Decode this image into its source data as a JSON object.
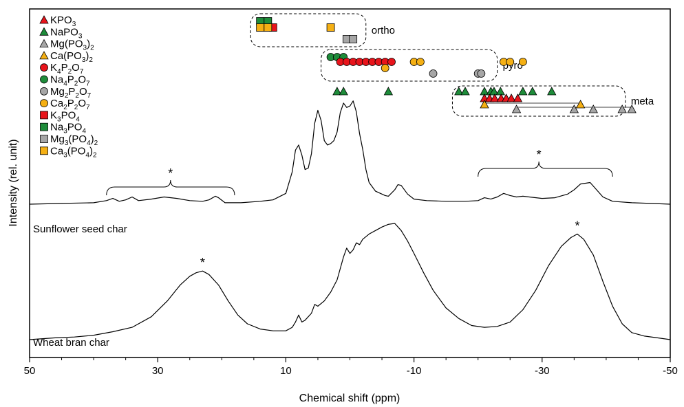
{
  "chart_data": {
    "type": "line",
    "xlabel": "Chemical shift (ppm)",
    "ylabel": "Intensity (rel. unit)",
    "xlim": [
      50,
      -50
    ],
    "xticks": [
      50,
      30,
      10,
      -10,
      -30,
      -50
    ],
    "colors": {
      "red": "#e8141b",
      "green": "#1e8c3a",
      "grey": "#a6a6a6",
      "orange": "#f5b014"
    },
    "legend": [
      {
        "marker": "triangle",
        "color": "red",
        "label": "KPO",
        "sub": [
          "3",
          ""
        ]
      },
      {
        "marker": "triangle",
        "color": "green",
        "label": "NaPO",
        "sub": [
          "3",
          ""
        ]
      },
      {
        "marker": "triangle",
        "color": "grey",
        "label": "Mg(PO",
        "sub": [
          "3",
          ")",
          "2"
        ]
      },
      {
        "marker": "triangle",
        "color": "orange",
        "label": "Ca(PO",
        "sub": [
          "3",
          ")",
          "2"
        ]
      },
      {
        "marker": "circle",
        "color": "red",
        "label": "K",
        "sub": [
          "4",
          "P",
          "2",
          "O",
          "7"
        ]
      },
      {
        "marker": "circle",
        "color": "green",
        "label": "Na",
        "sub": [
          "4",
          "P",
          "2",
          "O",
          "7"
        ]
      },
      {
        "marker": "circle",
        "color": "grey",
        "label": "Mg",
        "sub": [
          "2",
          "P",
          "2",
          "O",
          "7"
        ]
      },
      {
        "marker": "circle",
        "color": "orange",
        "label": "Ca",
        "sub": [
          "2",
          "P",
          "2",
          "O",
          "7"
        ]
      },
      {
        "marker": "square",
        "color": "red",
        "label": "K",
        "sub": [
          "3",
          "PO",
          "4"
        ]
      },
      {
        "marker": "square",
        "color": "green",
        "label": "Na",
        "sub": [
          "3",
          "PO",
          "4"
        ]
      },
      {
        "marker": "square",
        "color": "grey",
        "label": "Mg",
        "sub": [
          "3",
          "(PO",
          "4",
          ")",
          "2"
        ]
      },
      {
        "marker": "square",
        "color": "orange",
        "label": "Ca",
        "sub": [
          "3",
          "(PO",
          "4",
          ")",
          "2"
        ]
      }
    ],
    "groups": [
      {
        "label": "ortho",
        "x_range": [
          15.5,
          -2.5
        ]
      },
      {
        "label": "pyro",
        "x_range": [
          4.5,
          -23
        ]
      },
      {
        "label": "meta",
        "x_range": [
          -16,
          -43
        ]
      }
    ],
    "reference_markers": {
      "ortho": [
        {
          "marker": "square",
          "color": "green",
          "row": 0,
          "x": [
            14.0,
            12.8
          ]
        },
        {
          "marker": "square",
          "color": "red",
          "row": 1,
          "x": [
            12.0
          ]
        },
        {
          "marker": "square",
          "color": "orange",
          "row": 1,
          "x": [
            14.0,
            12.8,
            3.0
          ]
        },
        {
          "marker": "square",
          "color": "grey",
          "row": 2,
          "x": [
            0.5,
            -0.5
          ]
        }
      ],
      "pyro": [
        {
          "marker": "circle",
          "color": "green",
          "row": 0,
          "x": [
            3.0,
            2.0,
            1.0
          ]
        },
        {
          "marker": "circle",
          "color": "red",
          "row": 1,
          "x": [
            1.5,
            0.5,
            -0.5,
            -1.5,
            -2.5,
            -3.5,
            -4.5,
            -5.5,
            -6.5
          ]
        },
        {
          "marker": "circle",
          "color": "orange",
          "row": 1,
          "x": [
            -10.0,
            -11.0,
            -24.0,
            -25.0,
            -27.0
          ]
        },
        {
          "marker": "circle",
          "color": "orange",
          "row": 2,
          "x": [
            -5.5
          ]
        },
        {
          "marker": "circle",
          "color": "grey",
          "row": 3,
          "x": [
            -13.0,
            -20.0,
            -20.5
          ]
        }
      ],
      "meta": [
        {
          "marker": "triangle",
          "color": "green",
          "row": 0,
          "x": [
            2.0,
            1.0,
            -6.0,
            -17.0,
            -18.0,
            -21.0,
            -22.0,
            -22.5,
            -23.5,
            -27.0,
            -28.5,
            -31.5
          ]
        },
        {
          "marker": "triangle",
          "color": "red",
          "row": 1,
          "x": [
            -21.0,
            -21.8,
            -22.6,
            -23.6,
            -24.4,
            -25.2,
            -26.2
          ]
        },
        {
          "marker": "triangle",
          "color": "orange",
          "row": 2,
          "x": [
            -21.0,
            -36.0
          ]
        },
        {
          "marker": "triangle",
          "color": "grey",
          "row": 3,
          "x": [
            -26.0,
            -35.0,
            -38.0,
            -42.5,
            -44.0
          ]
        }
      ]
    },
    "series": [
      {
        "name": "Sunflower seed char",
        "points": [
          [
            50,
            0.0
          ],
          [
            45,
            0.01
          ],
          [
            40,
            0.02
          ],
          [
            38,
            0.05
          ],
          [
            37,
            0.08
          ],
          [
            36,
            0.04
          ],
          [
            35,
            0.06
          ],
          [
            34,
            0.1
          ],
          [
            33,
            0.05
          ],
          [
            31,
            0.07
          ],
          [
            29,
            0.1
          ],
          [
            27,
            0.08
          ],
          [
            25,
            0.05
          ],
          [
            23,
            0.04
          ],
          [
            22,
            0.06
          ],
          [
            21,
            0.11
          ],
          [
            20.5,
            0.09
          ],
          [
            19.5,
            0.02
          ],
          [
            17,
            0.02
          ],
          [
            14,
            0.04
          ],
          [
            12,
            0.06
          ],
          [
            10,
            0.15
          ],
          [
            9,
            0.45
          ],
          [
            8.5,
            0.75
          ],
          [
            8.0,
            0.82
          ],
          [
            7.5,
            0.68
          ],
          [
            7.0,
            0.48
          ],
          [
            6.5,
            0.5
          ],
          [
            6.0,
            0.7
          ],
          [
            5.5,
            1.12
          ],
          [
            5.0,
            1.3
          ],
          [
            4.5,
            1.16
          ],
          [
            4.0,
            0.88
          ],
          [
            3.5,
            0.82
          ],
          [
            3.0,
            0.84
          ],
          [
            2.5,
            0.88
          ],
          [
            2.0,
            1.0
          ],
          [
            1.5,
            1.27
          ],
          [
            1.0,
            1.4
          ],
          [
            0.5,
            1.34
          ],
          [
            0.0,
            1.36
          ],
          [
            -0.5,
            1.43
          ],
          [
            -1.0,
            1.28
          ],
          [
            -1.5,
            0.98
          ],
          [
            -2.0,
            0.76
          ],
          [
            -2.5,
            0.48
          ],
          [
            -3.0,
            0.3
          ],
          [
            -4.0,
            0.18
          ],
          [
            -5.5,
            0.12
          ],
          [
            -6.0,
            0.11
          ],
          [
            -7.0,
            0.2
          ],
          [
            -7.5,
            0.27
          ],
          [
            -8.0,
            0.26
          ],
          [
            -9.0,
            0.14
          ],
          [
            -10.0,
            0.07
          ],
          [
            -12,
            0.05
          ],
          [
            -15,
            0.04
          ],
          [
            -18,
            0.04
          ],
          [
            -20,
            0.05
          ],
          [
            -21,
            0.09
          ],
          [
            -22,
            0.07
          ],
          [
            -23,
            0.1
          ],
          [
            -24,
            0.15
          ],
          [
            -25,
            0.12
          ],
          [
            -26,
            0.1
          ],
          [
            -27,
            0.11
          ],
          [
            -28,
            0.1
          ],
          [
            -30,
            0.08
          ],
          [
            -32,
            0.09
          ],
          [
            -34,
            0.14
          ],
          [
            -35,
            0.2
          ],
          [
            -36,
            0.28
          ],
          [
            -37.5,
            0.3
          ],
          [
            -38.5,
            0.2
          ],
          [
            -39.5,
            0.1
          ],
          [
            -41,
            0.04
          ],
          [
            -44,
            0.02
          ],
          [
            -47,
            0.01
          ],
          [
            -50,
            0.0
          ]
        ]
      },
      {
        "name": "Wheat bran char",
        "points": [
          [
            50,
            0.0
          ],
          [
            46,
            0.02
          ],
          [
            43,
            0.03
          ],
          [
            40,
            0.05
          ],
          [
            37,
            0.09
          ],
          [
            34,
            0.14
          ],
          [
            31,
            0.26
          ],
          [
            28.5,
            0.44
          ],
          [
            26.5,
            0.62
          ],
          [
            25,
            0.72
          ],
          [
            24,
            0.76
          ],
          [
            23,
            0.78
          ],
          [
            22,
            0.74
          ],
          [
            20.5,
            0.62
          ],
          [
            19,
            0.44
          ],
          [
            17.5,
            0.28
          ],
          [
            16,
            0.18
          ],
          [
            14,
            0.12
          ],
          [
            12,
            0.1
          ],
          [
            10,
            0.1
          ],
          [
            9,
            0.14
          ],
          [
            8.5,
            0.2
          ],
          [
            8.0,
            0.28
          ],
          [
            7.5,
            0.2
          ],
          [
            7.0,
            0.22
          ],
          [
            6,
            0.3
          ],
          [
            5.5,
            0.4
          ],
          [
            5.0,
            0.38
          ],
          [
            4.0,
            0.44
          ],
          [
            3.0,
            0.54
          ],
          [
            2.0,
            0.68
          ],
          [
            1.0,
            0.94
          ],
          [
            0.5,
            1.04
          ],
          [
            0.0,
            0.98
          ],
          [
            -0.5,
            1.02
          ],
          [
            -1.0,
            1.1
          ],
          [
            -1.5,
            1.08
          ],
          [
            -2,
            1.14
          ],
          [
            -3,
            1.2
          ],
          [
            -4,
            1.24
          ],
          [
            -5,
            1.28
          ],
          [
            -6,
            1.31
          ],
          [
            -7,
            1.32
          ],
          [
            -8,
            1.24
          ],
          [
            -9,
            1.12
          ],
          [
            -10,
            0.98
          ],
          [
            -11.5,
            0.76
          ],
          [
            -13,
            0.56
          ],
          [
            -15,
            0.36
          ],
          [
            -17,
            0.24
          ],
          [
            -19,
            0.16
          ],
          [
            -21,
            0.14
          ],
          [
            -23,
            0.15
          ],
          [
            -25,
            0.2
          ],
          [
            -27,
            0.34
          ],
          [
            -29,
            0.56
          ],
          [
            -31,
            0.84
          ],
          [
            -33,
            1.06
          ],
          [
            -34.5,
            1.16
          ],
          [
            -35.5,
            1.2
          ],
          [
            -36.5,
            1.14
          ],
          [
            -38,
            0.96
          ],
          [
            -39.5,
            0.66
          ],
          [
            -41,
            0.38
          ],
          [
            -42.5,
            0.18
          ],
          [
            -44,
            0.08
          ],
          [
            -46,
            0.04
          ],
          [
            -48,
            0.02
          ],
          [
            -50,
            0.0
          ]
        ]
      }
    ],
    "annotations": [
      {
        "text": "*",
        "x": 28,
        "series": "Sunflower seed char",
        "kind": "bracket",
        "x_range": [
          38,
          18
        ]
      },
      {
        "text": "*",
        "x": -29.5,
        "series": "Sunflower seed char",
        "kind": "bracket",
        "x_range": [
          -20,
          -41
        ]
      },
      {
        "text": "*",
        "x": 23,
        "series": "Wheat bran char",
        "kind": "peak"
      },
      {
        "text": "*",
        "x": -35.5,
        "series": "Wheat bran char",
        "kind": "peak"
      }
    ]
  }
}
